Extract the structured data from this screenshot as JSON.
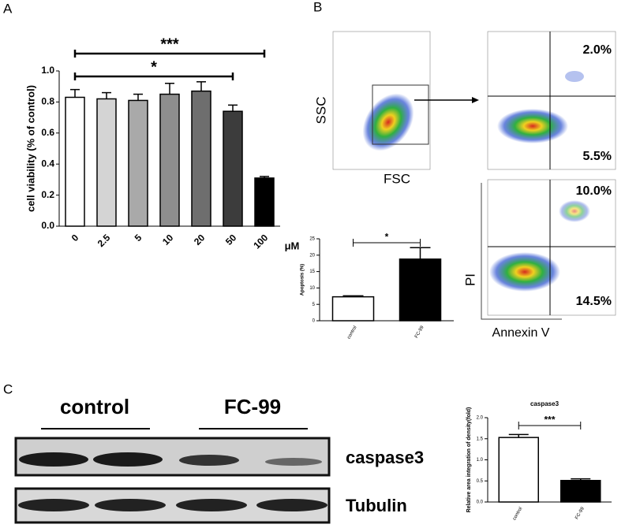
{
  "panels": {
    "a": "A",
    "b": "B",
    "c": "C"
  },
  "chart_data": [
    {
      "type": "bar",
      "y_label": "cell viability (% of control)",
      "x_unit": "μM",
      "categories": [
        "0",
        "2.5",
        "5",
        "10",
        "20",
        "50",
        "100"
      ],
      "values": [
        0.83,
        0.82,
        0.81,
        0.85,
        0.87,
        0.74,
        0.31
      ],
      "errors": [
        0.05,
        0.04,
        0.04,
        0.07,
        0.06,
        0.04,
        0.01
      ],
      "colors": [
        "#ffffff",
        "#d4d4d4",
        "#a9a9a9",
        "#8e8e8e",
        "#6e6e6e",
        "#3c3c3c",
        "#000000"
      ],
      "ylim": [
        0,
        1.0
      ],
      "yticks": [
        {
          "value": 0,
          "label": "0.0"
        },
        {
          "value": 0.2,
          "label": "0.2"
        },
        {
          "value": 0.4,
          "label": "0.4"
        },
        {
          "value": 0.6,
          "label": "0.6"
        },
        {
          "value": 0.8,
          "label": "0.8"
        },
        {
          "value": 1.0,
          "label": "1.0"
        }
      ],
      "annotations": [
        "***",
        "*"
      ]
    },
    {
      "type": "bar",
      "y_label": "Apoptosis (%)",
      "categories": [
        "control",
        "FC-99"
      ],
      "values": [
        7.3,
        18.8
      ],
      "errors": [
        0.3,
        3.5
      ],
      "colors": [
        "#ffffff",
        "#000000"
      ],
      "ylim": [
        0,
        25
      ],
      "yticks": [
        0,
        5,
        10,
        15,
        20,
        25
      ],
      "annotations": [
        "*"
      ]
    },
    {
      "type": "bar",
      "title": "caspase3",
      "y_label": "Relative area integration of density(fold)",
      "categories": [
        "control",
        "FC-99"
      ],
      "values": [
        1.53,
        0.51
      ],
      "errors": [
        0.07,
        0.04
      ],
      "colors": [
        "#ffffff",
        "#000000"
      ],
      "ylim": [
        0,
        2.0
      ],
      "yticks": [
        {
          "value": 0,
          "label": "0.0"
        },
        {
          "value": 0.5,
          "label": "0.5"
        },
        {
          "value": 1.0,
          "label": "1.0"
        },
        {
          "value": 1.5,
          "label": "1.5"
        },
        {
          "value": 2.0,
          "label": "2.0"
        }
      ],
      "annotations": [
        "***"
      ]
    }
  ],
  "flow": {
    "gate_y": "SSC",
    "gate_x": "FSC",
    "y_label": "PI",
    "x_label": "Annexin V",
    "plots": [
      {
        "upper_right": "2.0%",
        "lower_right": "5.5%"
      },
      {
        "upper_right": "10.0%",
        "lower_right": "14.5%"
      }
    ]
  },
  "blot": {
    "groups": [
      "control",
      "FC-99"
    ],
    "rows": [
      "caspase3",
      "Tubulin"
    ]
  }
}
